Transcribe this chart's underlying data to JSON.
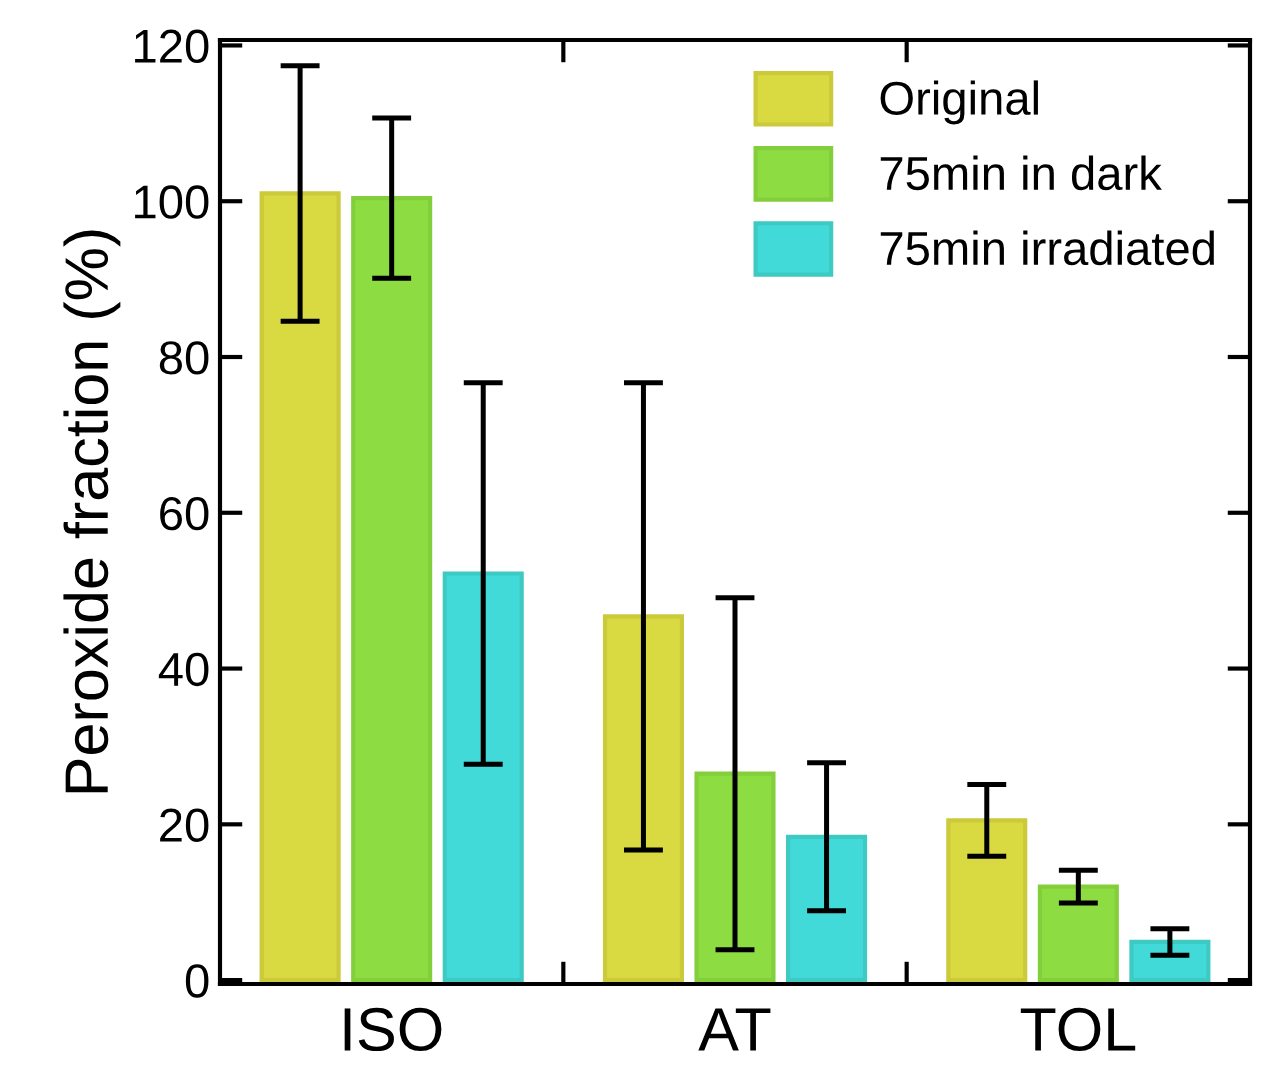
{
  "chart_data": {
    "type": "bar",
    "ylabel": "Peroxide fraction (%)",
    "categories": [
      "ISO",
      "AT",
      "TOL"
    ],
    "series": [
      {
        "name": "Original",
        "color": "#d9d941",
        "values": [
          101.0,
          46.7,
          20.5
        ],
        "errors": [
          16.4,
          30.0,
          4.6
        ]
      },
      {
        "name": "75min in dark",
        "color": "#8ddd42",
        "values": [
          100.4,
          26.5,
          12.0
        ],
        "errors": [
          10.3,
          22.6,
          2.1
        ]
      },
      {
        "name": "75min irradiated",
        "color": "#42d9d9",
        "values": [
          52.2,
          18.4,
          4.9
        ],
        "errors": [
          24.5,
          9.5,
          1.7
        ]
      }
    ],
    "ylim": [
      -0.5,
      120.7
    ],
    "yticks": [
      0,
      20,
      40,
      60,
      80,
      100,
      120
    ],
    "grid": false,
    "legend": "top right"
  }
}
